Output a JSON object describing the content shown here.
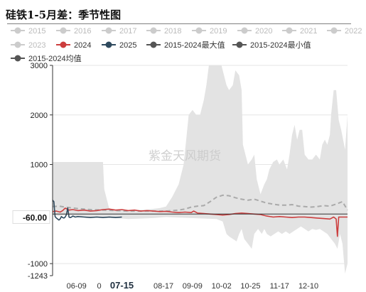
{
  "title": "硅铁1-5月差：季节性图",
  "watermark": "紫金天风期货",
  "colors": {
    "inactive": "#cccccc",
    "band": "#e3e3e3",
    "s2024": "#cc3d3d",
    "s2025": "#2f4a5e",
    "avg": "#aaaaaa",
    "axis": "#333333",
    "grid": "#e6e6e6"
  },
  "legend": [
    {
      "label": "2015",
      "active": false,
      "color": "#cccccc"
    },
    {
      "label": "2016",
      "active": false,
      "color": "#cccccc"
    },
    {
      "label": "2017",
      "active": false,
      "color": "#cccccc"
    },
    {
      "label": "2018",
      "active": false,
      "color": "#cccccc"
    },
    {
      "label": "2019",
      "active": false,
      "color": "#cccccc"
    },
    {
      "label": "2020",
      "active": false,
      "color": "#cccccc"
    },
    {
      "label": "2021",
      "active": false,
      "color": "#cccccc"
    },
    {
      "label": "2022",
      "active": false,
      "color": "#cccccc"
    },
    {
      "label": "2023",
      "active": false,
      "color": "#cccccc"
    },
    {
      "label": "2024",
      "active": true,
      "color": "#cc3d3d"
    },
    {
      "label": "2025",
      "active": true,
      "color": "#2f4a5e"
    },
    {
      "label": "2015-2024最大值",
      "active": true,
      "color": "#555555"
    },
    {
      "label": "2015-2024最小值",
      "active": true,
      "color": "#555555"
    },
    {
      "label": "2015-2024均值",
      "active": true,
      "color": "#555555"
    }
  ],
  "chart_data": {
    "type": "line",
    "title": "硅铁1-5月差：季节性图",
    "x_start": "05-21",
    "x_end": "12-31",
    "x_ticks": [
      {
        "label": "06-09",
        "day": 19,
        "bold": false
      },
      {
        "label": "0",
        "day": 37,
        "bold": false
      },
      {
        "label": "07-15",
        "day": 55,
        "bold": true
      },
      {
        "label": "08-17",
        "day": 88,
        "bold": false
      },
      {
        "label": "09-09",
        "day": 111,
        "bold": false
      },
      {
        "label": "10-02",
        "day": 134,
        "bold": false
      },
      {
        "label": "10-25",
        "day": 157,
        "bold": false
      },
      {
        "label": "11-17",
        "day": 180,
        "bold": false
      },
      {
        "label": "12-10",
        "day": 203,
        "bold": false
      }
    ],
    "ylim": [
      -1243,
      3000
    ],
    "y_ticks": [
      3000,
      2000,
      1000,
      -1000,
      -1243
    ],
    "highlight_value": -60,
    "highlight_label": "-60.00",
    "series": [
      {
        "name": "2015-2024最大值",
        "kind": "band_upper",
        "points": [
          [
            0,
            1050
          ],
          [
            5,
            1050
          ],
          [
            10,
            1050
          ],
          [
            20,
            1050
          ],
          [
            30,
            1050
          ],
          [
            40,
            1050
          ],
          [
            41,
            500
          ],
          [
            45,
            100
          ],
          [
            55,
            80
          ],
          [
            65,
            80
          ],
          [
            75,
            90
          ],
          [
            85,
            120
          ],
          [
            90,
            150
          ],
          [
            95,
            350
          ],
          [
            100,
            600
          ],
          [
            104,
            1000
          ],
          [
            106,
            1500
          ],
          [
            108,
            2000
          ],
          [
            111,
            2100
          ],
          [
            114,
            2000
          ],
          [
            117,
            2000
          ],
          [
            120,
            2300
          ],
          [
            122,
            2600
          ],
          [
            124,
            3000
          ],
          [
            132,
            3000
          ],
          [
            134,
            3000
          ],
          [
            136,
            2800
          ],
          [
            138,
            2600
          ],
          [
            140,
            2500
          ],
          [
            143,
            2600
          ],
          [
            145,
            2900
          ],
          [
            148,
            2800
          ],
          [
            150,
            2500
          ],
          [
            151,
            1400
          ],
          [
            155,
            1000
          ],
          [
            158,
            1100
          ],
          [
            160,
            1200
          ],
          [
            162,
            700
          ],
          [
            165,
            400
          ],
          [
            168,
            600
          ],
          [
            170,
            700
          ],
          [
            172,
            900
          ],
          [
            175,
            1050
          ],
          [
            178,
            1100
          ],
          [
            180,
            1000
          ],
          [
            183,
            1100
          ],
          [
            186,
            900
          ],
          [
            188,
            1200
          ],
          [
            190,
            1600
          ],
          [
            192,
            1800
          ],
          [
            194,
            1500
          ],
          [
            196,
            1700
          ],
          [
            198,
            1700
          ],
          [
            200,
            1200
          ],
          [
            203,
            1100
          ],
          [
            206,
            1100
          ],
          [
            209,
            1200
          ],
          [
            212,
            1100
          ],
          [
            214,
            1400
          ],
          [
            216,
            1500
          ],
          [
            218,
            1400
          ],
          [
            220,
            1600
          ],
          [
            221,
            2000
          ],
          [
            223,
            2500
          ],
          [
            225,
            2500
          ],
          [
            227,
            1900
          ],
          [
            229,
            1700
          ],
          [
            232,
            1300
          ],
          [
            234,
            2000
          ]
        ]
      },
      {
        "name": "2015-2024最小值",
        "kind": "band_lower",
        "points": [
          [
            0,
            -20
          ],
          [
            5,
            -40
          ],
          [
            10,
            -20
          ],
          [
            20,
            -40
          ],
          [
            30,
            -60
          ],
          [
            40,
            -80
          ],
          [
            50,
            -80
          ],
          [
            60,
            -100
          ],
          [
            70,
            -90
          ],
          [
            80,
            -80
          ],
          [
            90,
            -60
          ],
          [
            100,
            -70
          ],
          [
            110,
            -80
          ],
          [
            120,
            -90
          ],
          [
            130,
            -100
          ],
          [
            135,
            -150
          ],
          [
            138,
            -400
          ],
          [
            140,
            -450
          ],
          [
            143,
            -500
          ],
          [
            146,
            -550
          ],
          [
            148,
            -400
          ],
          [
            150,
            -300
          ],
          [
            152,
            -500
          ],
          [
            155,
            -600
          ],
          [
            158,
            -700
          ],
          [
            160,
            -400
          ],
          [
            163,
            -300
          ],
          [
            166,
            -400
          ],
          [
            168,
            -300
          ],
          [
            170,
            -400
          ],
          [
            173,
            -450
          ],
          [
            176,
            -400
          ],
          [
            179,
            -350
          ],
          [
            182,
            -400
          ],
          [
            185,
            -350
          ],
          [
            188,
            -400
          ],
          [
            191,
            -350
          ],
          [
            194,
            -300
          ],
          [
            197,
            -250
          ],
          [
            200,
            -300
          ],
          [
            203,
            -350
          ],
          [
            206,
            -300
          ],
          [
            209,
            -320
          ],
          [
            212,
            -300
          ],
          [
            215,
            -350
          ],
          [
            218,
            -400
          ],
          [
            221,
            -500
          ],
          [
            224,
            -600
          ],
          [
            226,
            -700
          ],
          [
            228,
            -400
          ],
          [
            230,
            -600
          ],
          [
            232,
            -1200
          ],
          [
            234,
            -1000
          ]
        ]
      },
      {
        "name": "2015-2024均值",
        "kind": "dashed",
        "color": "#aaaaaa",
        "points": [
          [
            0,
            150
          ],
          [
            5,
            160
          ],
          [
            10,
            140
          ],
          [
            20,
            110
          ],
          [
            30,
            90
          ],
          [
            40,
            80
          ],
          [
            50,
            70
          ],
          [
            60,
            60
          ],
          [
            70,
            60
          ],
          [
            80,
            60
          ],
          [
            90,
            60
          ],
          [
            100,
            80
          ],
          [
            105,
            100
          ],
          [
            110,
            140
          ],
          [
            115,
            160
          ],
          [
            120,
            170
          ],
          [
            125,
            250
          ],
          [
            130,
            340
          ],
          [
            135,
            380
          ],
          [
            140,
            370
          ],
          [
            145,
            330
          ],
          [
            150,
            300
          ],
          [
            155,
            280
          ],
          [
            160,
            300
          ],
          [
            165,
            260
          ],
          [
            170,
            220
          ],
          [
            175,
            200
          ],
          [
            180,
            180
          ],
          [
            185,
            180
          ],
          [
            190,
            190
          ],
          [
            195,
            160
          ],
          [
            200,
            150
          ],
          [
            205,
            140
          ],
          [
            210,
            150
          ],
          [
            215,
            170
          ],
          [
            220,
            160
          ],
          [
            225,
            200
          ],
          [
            230,
            250
          ],
          [
            234,
            80
          ]
        ]
      },
      {
        "name": "2024",
        "kind": "line",
        "color": "#cc3d3d",
        "points": [
          [
            0,
            50
          ],
          [
            3,
            60
          ],
          [
            6,
            40
          ],
          [
            8,
            70
          ],
          [
            10,
            120
          ],
          [
            13,
            80
          ],
          [
            16,
            90
          ],
          [
            20,
            70
          ],
          [
            25,
            80
          ],
          [
            30,
            60
          ],
          [
            35,
            70
          ],
          [
            40,
            90
          ],
          [
            45,
            100
          ],
          [
            50,
            80
          ],
          [
            55,
            90
          ],
          [
            60,
            70
          ],
          [
            65,
            80
          ],
          [
            70,
            60
          ],
          [
            75,
            70
          ],
          [
            80,
            60
          ],
          [
            85,
            50
          ],
          [
            90,
            55
          ],
          [
            95,
            40
          ],
          [
            100,
            30
          ],
          [
            105,
            40
          ],
          [
            110,
            30
          ],
          [
            112,
            60
          ],
          [
            115,
            20
          ],
          [
            120,
            10
          ],
          [
            125,
            0
          ],
          [
            130,
            -10
          ],
          [
            135,
            -20
          ],
          [
            140,
            -10
          ],
          [
            145,
            10
          ],
          [
            150,
            20
          ],
          [
            155,
            10
          ],
          [
            160,
            0
          ],
          [
            165,
            -10
          ],
          [
            170,
            -40
          ],
          [
            175,
            -60
          ],
          [
            180,
            -50
          ],
          [
            185,
            -60
          ],
          [
            190,
            -70
          ],
          [
            195,
            -60
          ],
          [
            200,
            -60
          ],
          [
            205,
            -70
          ],
          [
            210,
            -80
          ],
          [
            215,
            -90
          ],
          [
            220,
            -100
          ],
          [
            223,
            -60
          ],
          [
            225,
            -100
          ],
          [
            226,
            -450
          ],
          [
            227,
            -60
          ],
          [
            230,
            -60
          ],
          [
            234,
            -60
          ]
        ]
      },
      {
        "name": "2025",
        "kind": "line",
        "color": "#2f4a5e",
        "points": [
          [
            0,
            280
          ],
          [
            1,
            250
          ],
          [
            2,
            -50
          ],
          [
            3,
            -80
          ],
          [
            4,
            -100
          ],
          [
            5,
            -120
          ],
          [
            6,
            -100
          ],
          [
            7,
            -50
          ],
          [
            8,
            -70
          ],
          [
            9,
            -80
          ],
          [
            10,
            -60
          ],
          [
            11,
            -10
          ],
          [
            12,
            120
          ],
          [
            13,
            -60
          ],
          [
            14,
            -70
          ],
          [
            15,
            -60
          ],
          [
            16,
            -40
          ],
          [
            17,
            -50
          ],
          [
            18,
            -60
          ],
          [
            20,
            -50
          ],
          [
            25,
            -60
          ],
          [
            30,
            -70
          ],
          [
            35,
            -60
          ],
          [
            40,
            -70
          ],
          [
            45,
            -60
          ],
          [
            50,
            -70
          ],
          [
            55,
            -60
          ]
        ]
      }
    ],
    "grid": true,
    "legend_position": "top"
  }
}
